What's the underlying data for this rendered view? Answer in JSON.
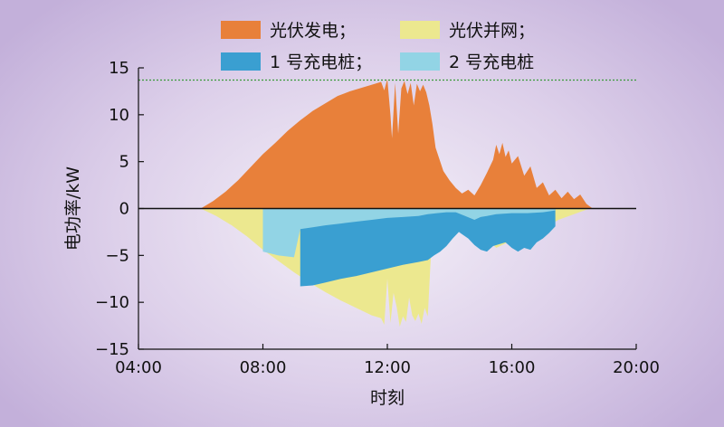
{
  "chart_data": {
    "type": "area",
    "xlabel": "时刻",
    "ylabel": "电功率/kW",
    "xlim": [
      "04:00",
      "20:00"
    ],
    "ylim": [
      -15,
      15
    ],
    "xticks": [
      "04:00",
      "08:00",
      "12:00",
      "16:00",
      "20:00"
    ],
    "yticks": [
      "15",
      "10",
      "5",
      "0",
      "−5",
      "−10",
      "−15"
    ],
    "reference_line": {
      "y": 13.7,
      "style": "dotted",
      "color": "#3a9a3a"
    },
    "legend_placement": "top-center",
    "x_unit": "hours",
    "series": [
      {
        "name": "光伏发电；",
        "color": "#e8803a",
        "x": [
          6.0,
          6.4,
          6.8,
          7.2,
          7.6,
          8.0,
          8.4,
          8.8,
          9.2,
          9.6,
          10.0,
          10.4,
          10.8,
          11.2,
          11.6,
          11.8,
          11.9,
          12.0,
          12.1,
          12.15,
          12.25,
          12.35,
          12.45,
          12.55,
          12.65,
          12.75,
          12.85,
          12.95,
          13.05,
          13.15,
          13.25,
          13.35,
          13.45,
          13.55,
          13.65,
          13.8,
          14.0,
          14.2,
          14.4,
          14.6,
          14.8,
          15.0,
          15.2,
          15.4,
          15.5,
          15.6,
          15.7,
          15.8,
          15.9,
          16.0,
          16.2,
          16.4,
          16.6,
          16.8,
          17.0,
          17.2,
          17.4,
          17.6,
          17.8,
          18.0,
          18.2,
          18.4,
          18.6
        ],
        "values": [
          0,
          0.8,
          1.8,
          3.0,
          4.4,
          5.8,
          7.0,
          8.3,
          9.4,
          10.4,
          11.2,
          12.0,
          12.5,
          12.9,
          13.3,
          13.5,
          12.6,
          13.8,
          10.0,
          7.5,
          13.4,
          8.0,
          12.8,
          13.6,
          12.2,
          13.4,
          11.0,
          13.3,
          12.5,
          13.2,
          12.4,
          11.0,
          9.0,
          6.5,
          5.5,
          4.0,
          3.0,
          2.2,
          1.6,
          2.0,
          1.4,
          2.5,
          3.8,
          5.2,
          6.8,
          5.8,
          7.0,
          5.5,
          6.2,
          4.8,
          5.6,
          3.5,
          4.5,
          2.2,
          2.8,
          1.4,
          2.0,
          1.1,
          1.8,
          1.0,
          1.5,
          0.5,
          0
        ]
      },
      {
        "name": "光伏并网；",
        "color": "#ece88f",
        "x": [
          6.0,
          6.5,
          7.0,
          7.5,
          8.0,
          8.5,
          9.0,
          9.5,
          10.0,
          10.5,
          11.0,
          11.5,
          11.8,
          11.9,
          12.0,
          12.1,
          12.2,
          12.3,
          12.4,
          12.5,
          12.6,
          12.7,
          12.8,
          12.9,
          13.0,
          13.1,
          13.2,
          13.3,
          13.4,
          13.5,
          13.6,
          13.8,
          14.0,
          14.5,
          15.0,
          15.5,
          16.0,
          16.5,
          17.0,
          17.5,
          18.0,
          18.5
        ],
        "values": [
          0,
          -0.8,
          -1.8,
          -3.0,
          -4.4,
          -5.6,
          -6.8,
          -7.9,
          -8.9,
          -9.8,
          -10.6,
          -11.4,
          -11.7,
          -12.4,
          -7.5,
          -12.2,
          -9.0,
          -10.5,
          -12.6,
          -11.5,
          -12.1,
          -9.5,
          -11.4,
          -12.0,
          -11.2,
          -12.3,
          -10.6,
          -11.5,
          -5.0,
          -4.6,
          -4.2,
          -3.6,
          -2.6,
          -1.8,
          -2.6,
          -4.2,
          -3.4,
          -3.0,
          -2.2,
          -1.2,
          -0.6,
          0
        ]
      },
      {
        "name": "1 号充电桩；",
        "color": "#3a9fd1",
        "x": [
          9.2,
          9.6,
          10.0,
          10.5,
          11.0,
          11.5,
          12.0,
          12.5,
          13.0,
          13.3,
          13.5,
          13.7,
          13.9,
          14.1,
          14.3,
          14.6,
          14.8,
          15.0,
          15.2,
          15.4,
          15.6,
          15.8,
          16.0,
          16.2,
          16.4,
          16.6,
          16.8,
          17.0,
          17.2,
          17.4
        ],
        "values": [
          -8.3,
          -8.2,
          -7.9,
          -7.5,
          -7.2,
          -6.8,
          -6.4,
          -6.0,
          -5.7,
          -5.5,
          -5.0,
          -4.6,
          -4.0,
          -3.2,
          -2.5,
          -3.2,
          -3.9,
          -4.4,
          -4.6,
          -4.0,
          -3.8,
          -3.6,
          -4.2,
          -4.6,
          -4.2,
          -4.4,
          -3.6,
          -3.2,
          -2.6,
          -1.9
        ]
      },
      {
        "name": "2 号充电桩",
        "color": "#92d4e5",
        "x": [
          8.0,
          8.5,
          9.0,
          9.2,
          9.6,
          10.0,
          10.5,
          11.0,
          11.5,
          12.0,
          12.5,
          13.0,
          13.3,
          13.6,
          13.9,
          14.2,
          14.5,
          14.8,
          15.0,
          15.2,
          15.5,
          16.0,
          16.5,
          17.0,
          17.4
        ],
        "values": [
          -4.6,
          -5.0,
          -5.2,
          -2.2,
          -2.0,
          -1.8,
          -1.6,
          -1.4,
          -1.2,
          -1.0,
          -0.9,
          -0.8,
          -0.6,
          -0.5,
          -0.4,
          -0.4,
          -0.8,
          -1.2,
          -0.9,
          -0.8,
          -0.6,
          -0.5,
          -0.5,
          -0.4,
          -0.2
        ]
      }
    ]
  }
}
